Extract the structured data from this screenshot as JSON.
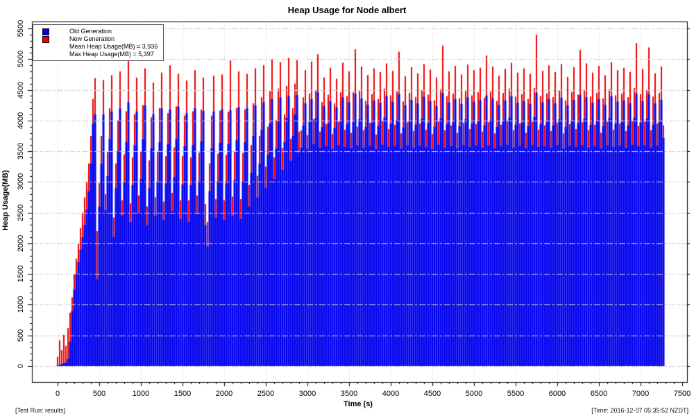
{
  "title": "Heap Usage for Node albert",
  "footer": {
    "left": "[Test Run: results]",
    "right": "[Time: 2016-12-07 05:35:52 NZDT]"
  },
  "chart_data": {
    "type": "area",
    "title": "Heap Usage for Node albert",
    "xlabel": "Time (s)",
    "ylabel": "Heap Usage(MB)",
    "xlim": [
      0,
      7500
    ],
    "ylim": [
      0,
      5500
    ],
    "x_major_ticks": [
      0,
      500,
      1000,
      1500,
      2000,
      2500,
      3000,
      3500,
      4000,
      4500,
      5000,
      5500,
      6000,
      6500,
      7000,
      7500
    ],
    "y_major_ticks": [
      0,
      500,
      1000,
      1500,
      2000,
      2500,
      3000,
      3500,
      4000,
      4500,
      5000,
      5500
    ],
    "minor_tick_interval": 100,
    "grid": true,
    "legend_position": "top-left",
    "background_color": "#ffffff",
    "grid_color": "#cfcfcf",
    "series_meta": [
      {
        "name": "Old Generation",
        "color": "#0000ee"
      },
      {
        "name": "New Generation",
        "color": "#ee0000"
      }
    ],
    "legend_stats": [
      {
        "label": "Mean Heap Usage(MB) = 3,936"
      },
      {
        "label": "Max Heap Usage(MB) = 5,397"
      }
    ],
    "mean_heap_mb": 3936,
    "max_heap_mb": 5397,
    "sample_interval_s": 25,
    "points_format": [
      "time_s",
      "old_generation_mb",
      "total_heap_mb"
    ],
    "points": [
      [
        0,
        10,
        150
      ],
      [
        25,
        20,
        420
      ],
      [
        50,
        35,
        260
      ],
      [
        75,
        45,
        510
      ],
      [
        100,
        60,
        330
      ],
      [
        125,
        120,
        620
      ],
      [
        150,
        400,
        870
      ],
      [
        175,
        900,
        1120
      ],
      [
        200,
        1250,
        1500
      ],
      [
        225,
        1500,
        1750
      ],
      [
        250,
        1700,
        2000
      ],
      [
        275,
        1900,
        2250
      ],
      [
        300,
        2100,
        2500
      ],
      [
        325,
        2300,
        2750
      ],
      [
        350,
        2550,
        3000
      ],
      [
        375,
        2850,
        3300
      ],
      [
        400,
        3300,
        3750
      ],
      [
        425,
        3950,
        4350
      ],
      [
        450,
        4100,
        4690
      ],
      [
        475,
        1420,
        2200
      ],
      [
        500,
        2600,
        2980
      ],
      [
        525,
        3300,
        3750
      ],
      [
        550,
        4100,
        4660
      ],
      [
        575,
        2540,
        2800
      ],
      [
        600,
        3100,
        3500
      ],
      [
        625,
        3700,
        4200
      ],
      [
        650,
        4150,
        4740
      ],
      [
        675,
        2100,
        2420
      ],
      [
        700,
        2900,
        3300
      ],
      [
        725,
        3500,
        4000
      ],
      [
        750,
        4200,
        4800
      ],
      [
        775,
        2450,
        2700
      ],
      [
        800,
        3000,
        3450
      ],
      [
        825,
        3650,
        4150
      ],
      [
        850,
        4300,
        5050
      ],
      [
        875,
        2350,
        2650
      ],
      [
        900,
        2950,
        3400
      ],
      [
        925,
        3600,
        4100
      ],
      [
        950,
        4150,
        4700
      ],
      [
        975,
        2500,
        2780
      ],
      [
        1000,
        3050,
        3500
      ],
      [
        1025,
        3700,
        4250
      ],
      [
        1050,
        4250,
        4850
      ],
      [
        1075,
        2300,
        2600
      ],
      [
        1100,
        2900,
        3350
      ],
      [
        1125,
        3550,
        4050
      ],
      [
        1150,
        4100,
        4620
      ],
      [
        1175,
        2450,
        2750
      ],
      [
        1200,
        3000,
        3500
      ],
      [
        1225,
        3650,
        4200
      ],
      [
        1250,
        4200,
        4780
      ],
      [
        1275,
        2380,
        2680
      ],
      [
        1300,
        2980,
        3420
      ],
      [
        1325,
        3620,
        4120
      ],
      [
        1350,
        4180,
        4900
      ],
      [
        1375,
        2520,
        2820
      ],
      [
        1400,
        3080,
        3560
      ],
      [
        1425,
        3700,
        4230
      ],
      [
        1450,
        4230,
        4760
      ],
      [
        1475,
        2400,
        2700
      ],
      [
        1500,
        2960,
        3420
      ],
      [
        1525,
        3580,
        4080
      ],
      [
        1550,
        4120,
        4650
      ],
      [
        1575,
        2350,
        2700
      ],
      [
        1600,
        2950,
        3400
      ],
      [
        1625,
        3600,
        4150
      ],
      [
        1650,
        4200,
        4820
      ],
      [
        1675,
        2480,
        2780
      ],
      [
        1700,
        3020,
        3480
      ],
      [
        1725,
        3660,
        4180
      ],
      [
        1750,
        4160,
        4700
      ],
      [
        1775,
        2300,
        2640
      ],
      [
        1800,
        1950,
        2350
      ],
      [
        1825,
        2850,
        3300
      ],
      [
        1850,
        3550,
        4080
      ],
      [
        1875,
        4150,
        4730
      ],
      [
        1900,
        2420,
        2720
      ],
      [
        1925,
        3000,
        3460
      ],
      [
        1950,
        3640,
        4160
      ],
      [
        1975,
        4180,
        4750
      ],
      [
        2000,
        2380,
        2700
      ],
      [
        2025,
        2980,
        3440
      ],
      [
        2050,
        3620,
        4140
      ],
      [
        2075,
        4170,
        4980
      ],
      [
        2100,
        2450,
        2760
      ],
      [
        2125,
        3030,
        3500
      ],
      [
        2150,
        3680,
        4200
      ],
      [
        2175,
        4220,
        4800
      ],
      [
        2200,
        2400,
        2720
      ],
      [
        2225,
        3000,
        3470
      ],
      [
        2250,
        3650,
        4180
      ],
      [
        2275,
        4200,
        4760
      ],
      [
        2300,
        2600,
        2950
      ],
      [
        2325,
        3150,
        3600
      ],
      [
        2350,
        3750,
        4280
      ],
      [
        2375,
        4250,
        4850
      ],
      [
        2400,
        2750,
        3100
      ],
      [
        2425,
        3300,
        3750
      ],
      [
        2450,
        3850,
        4380
      ],
      [
        2475,
        4300,
        4900
      ],
      [
        2500,
        2900,
        3250
      ],
      [
        2525,
        3450,
        3900
      ],
      [
        2550,
        3950,
        4480
      ],
      [
        2575,
        4350,
        5000
      ],
      [
        2600,
        3050,
        3400
      ],
      [
        2625,
        3550,
        4000
      ],
      [
        2650,
        4000,
        4520
      ],
      [
        2675,
        4380,
        4950
      ],
      [
        2700,
        3200,
        3550
      ],
      [
        2725,
        3650,
        4100
      ],
      [
        2750,
        4050,
        4560
      ],
      [
        2775,
        4400,
        5020
      ],
      [
        2800,
        3350,
        3700
      ],
      [
        2825,
        3750,
        4200
      ],
      [
        2850,
        4100,
        4600
      ],
      [
        2875,
        4420,
        4980
      ],
      [
        2900,
        3480,
        3820
      ],
      [
        2925,
        3560,
        3840
      ],
      [
        2950,
        3920,
        4380
      ],
      [
        2975,
        4280,
        4820
      ],
      [
        3000,
        3540,
        3760
      ],
      [
        3025,
        3980,
        4440
      ],
      [
        3050,
        4350,
        4960
      ],
      [
        3075,
        3620,
        4020
      ],
      [
        3100,
        4040,
        4500
      ],
      [
        3125,
        4460,
        5080
      ],
      [
        3150,
        3560,
        3820
      ],
      [
        3175,
        3900,
        4300
      ],
      [
        3200,
        4240,
        4700
      ],
      [
        3225,
        3580,
        3940
      ],
      [
        3250,
        3960,
        4420
      ],
      [
        3275,
        4320,
        4860
      ],
      [
        3300,
        3540,
        3780
      ],
      [
        3325,
        3880,
        4280
      ],
      [
        3350,
        4220,
        4680
      ],
      [
        3375,
        3600,
        3980
      ],
      [
        3400,
        4000,
        4460
      ],
      [
        3425,
        4380,
        4940
      ],
      [
        3450,
        3570,
        3850
      ],
      [
        3475,
        3940,
        4400
      ],
      [
        3500,
        4300,
        4800
      ],
      [
        3525,
        3550,
        3800
      ],
      [
        3550,
        3980,
        4460
      ],
      [
        3575,
        4440,
        5160
      ],
      [
        3600,
        3600,
        3900
      ],
      [
        3625,
        4020,
        4480
      ],
      [
        3650,
        4360,
        4880
      ],
      [
        3675,
        3560,
        3840
      ],
      [
        3700,
        3900,
        4320
      ],
      [
        3725,
        4260,
        4740
      ],
      [
        3750,
        3590,
        3960
      ],
      [
        3775,
        3970,
        4430
      ],
      [
        3800,
        4330,
        4850
      ],
      [
        3825,
        3540,
        3770
      ],
      [
        3850,
        3910,
        4350
      ],
      [
        3875,
        4290,
        4790
      ],
      [
        3900,
        3610,
        3990
      ],
      [
        3925,
        4050,
        4520
      ],
      [
        3950,
        4400,
        4930
      ],
      [
        3975,
        3570,
        3860
      ],
      [
        4000,
        3950,
        4410
      ],
      [
        4025,
        4310,
        4810
      ],
      [
        4050,
        3580,
        3930
      ],
      [
        4075,
        4010,
        4470
      ],
      [
        4100,
        4430,
        5120
      ],
      [
        4125,
        3550,
        3790
      ],
      [
        4150,
        3890,
        4310
      ],
      [
        4175,
        4250,
        4720
      ],
      [
        4200,
        3600,
        3970
      ],
      [
        4225,
        3990,
        4450
      ],
      [
        4250,
        4340,
        4870
      ],
      [
        4275,
        3560,
        3830
      ],
      [
        4300,
        3930,
        4380
      ],
      [
        4325,
        4280,
        4770
      ],
      [
        4350,
        3590,
        3950
      ],
      [
        4375,
        4030,
        4500
      ],
      [
        4400,
        4390,
        4920
      ],
      [
        4425,
        3570,
        3850
      ],
      [
        4450,
        3960,
        4420
      ],
      [
        4475,
        4320,
        4830
      ],
      [
        4500,
        3540,
        3780
      ],
      [
        4525,
        3900,
        4330
      ],
      [
        4550,
        4240,
        4700
      ],
      [
        4575,
        3610,
        3980
      ],
      [
        4600,
        4040,
        4510
      ],
      [
        4625,
        4450,
        5220
      ],
      [
        4650,
        3560,
        3840
      ],
      [
        4675,
        3940,
        4400
      ],
      [
        4700,
        4300,
        4800
      ],
      [
        4725,
        3580,
        3920
      ],
      [
        4750,
        3980,
        4440
      ],
      [
        4775,
        4350,
        4890
      ],
      [
        4800,
        3550,
        3800
      ],
      [
        4825,
        3910,
        4360
      ],
      [
        4850,
        4270,
        4750
      ],
      [
        4875,
        3600,
        3960
      ],
      [
        4900,
        4020,
        4480
      ],
      [
        4925,
        4380,
        4910
      ],
      [
        4950,
        3570,
        3860
      ],
      [
        4975,
        3950,
        4410
      ],
      [
        5000,
        4310,
        4820
      ],
      [
        5025,
        3590,
        3940
      ],
      [
        5050,
        4000,
        4460
      ],
      [
        5075,
        4340,
        4860
      ],
      [
        5100,
        3560,
        3820
      ],
      [
        5125,
        3920,
        4370
      ],
      [
        5150,
        4410,
        5060
      ],
      [
        5175,
        3600,
        3970
      ],
      [
        5200,
        4010,
        4470
      ],
      [
        5225,
        4360,
        4880
      ],
      [
        5250,
        3550,
        3790
      ],
      [
        5275,
        3900,
        4320
      ],
      [
        5300,
        4260,
        4730
      ],
      [
        5325,
        3580,
        3930
      ],
      [
        5350,
        3990,
        4450
      ],
      [
        5375,
        4330,
        4840
      ],
      [
        5400,
        3610,
        3990
      ],
      [
        5425,
        4050,
        4520
      ],
      [
        5450,
        4400,
        4940
      ],
      [
        5475,
        3560,
        3840
      ],
      [
        5500,
        3930,
        4390
      ],
      [
        5525,
        4290,
        4780
      ],
      [
        5550,
        3590,
        3950
      ],
      [
        5575,
        3970,
        4430
      ],
      [
        5600,
        4320,
        4850
      ],
      [
        5625,
        3550,
        3800
      ],
      [
        5650,
        3910,
        4350
      ],
      [
        5675,
        4270,
        4760
      ],
      [
        5700,
        3600,
        3980
      ],
      [
        5725,
        4060,
        4530
      ],
      [
        5750,
        4450,
        5397
      ],
      [
        5775,
        3570,
        3850
      ],
      [
        5800,
        3940,
        4400
      ],
      [
        5825,
        4300,
        4810
      ],
      [
        5850,
        3580,
        3920
      ],
      [
        5875,
        3980,
        4440
      ],
      [
        5900,
        4350,
        4900
      ],
      [
        5925,
        3560,
        3830
      ],
      [
        5950,
        3920,
        4380
      ],
      [
        5975,
        4280,
        4790
      ],
      [
        6000,
        3600,
        3960
      ],
      [
        6025,
        4020,
        4490
      ],
      [
        6050,
        4370,
        4920
      ],
      [
        6075,
        3550,
        3790
      ],
      [
        6100,
        3900,
        4330
      ],
      [
        6125,
        4250,
        4710
      ],
      [
        6150,
        3590,
        3940
      ],
      [
        6175,
        4000,
        4460
      ],
      [
        6200,
        4340,
        4870
      ],
      [
        6225,
        3570,
        3860
      ],
      [
        6250,
        3960,
        4420
      ],
      [
        6275,
        4420,
        5150
      ],
      [
        6300,
        3600,
        3970
      ],
      [
        6325,
        4030,
        4500
      ],
      [
        6350,
        4380,
        4930
      ],
      [
        6375,
        3560,
        3840
      ],
      [
        6400,
        3930,
        4390
      ],
      [
        6425,
        4290,
        4780
      ],
      [
        6450,
        3580,
        3930
      ],
      [
        6475,
        3990,
        4450
      ],
      [
        6500,
        4350,
        4890
      ],
      [
        6525,
        3550,
        3800
      ],
      [
        6550,
        3910,
        4360
      ],
      [
        6575,
        4260,
        4740
      ],
      [
        6600,
        3600,
        3980
      ],
      [
        6625,
        4040,
        4510
      ],
      [
        6650,
        4400,
        4950
      ],
      [
        6675,
        3570,
        3850
      ],
      [
        6700,
        3950,
        4410
      ],
      [
        6725,
        4310,
        4820
      ],
      [
        6750,
        3590,
        3950
      ],
      [
        6775,
        3980,
        4440
      ],
      [
        6800,
        4330,
        4860
      ],
      [
        6825,
        3560,
        3830
      ],
      [
        6850,
        3920,
        4380
      ],
      [
        6875,
        4280,
        4790
      ],
      [
        6900,
        3610,
        3990
      ],
      [
        6925,
        4050,
        4530
      ],
      [
        6950,
        4440,
        5260
      ],
      [
        6975,
        3580,
        3910
      ],
      [
        7000,
        3970,
        4430
      ],
      [
        7025,
        4320,
        4840
      ],
      [
        7050,
        3600,
        3980
      ],
      [
        7075,
        4030,
        4500
      ],
      [
        7100,
        4430,
        5190
      ],
      [
        7125,
        3560,
        3840
      ],
      [
        7150,
        3930,
        4390
      ],
      [
        7175,
        4280,
        4770
      ],
      [
        7200,
        3590,
        3950
      ],
      [
        7225,
        3980,
        4450
      ],
      [
        7250,
        4340,
        4880
      ],
      [
        7275,
        3720,
        3920
      ]
    ]
  }
}
